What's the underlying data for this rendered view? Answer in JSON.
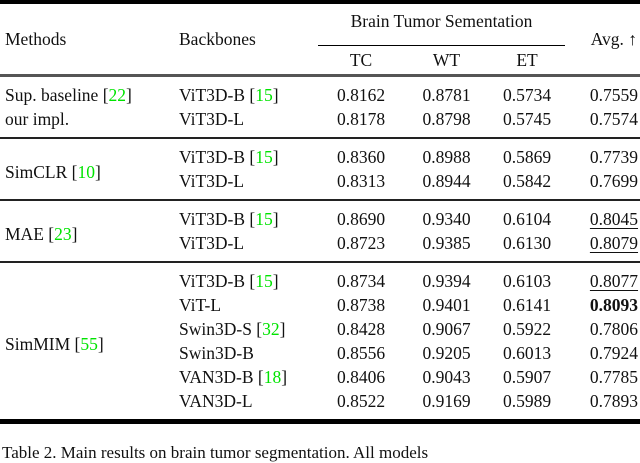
{
  "colors": {
    "citation": "#00e400",
    "rule_heavy": "#000000",
    "rule_header": "#555555"
  },
  "table": {
    "header": {
      "methods": "Methods",
      "backbones": "Backbones",
      "span": "Brain Tumor Sementation",
      "sub": [
        "TC",
        "WT",
        "ET"
      ],
      "avg_label": "Avg. ↑"
    },
    "groups": [
      {
        "method": {
          "lines": [
            {
              "label": "Sup. baseline",
              "cite": "22"
            },
            {
              "label": "our impl.",
              "cite": null
            }
          ]
        },
        "rows": [
          {
            "backbone": {
              "label": "ViT3D-B",
              "cite": "15"
            },
            "tc": "0.8162",
            "wt": "0.8781",
            "et": "0.5734",
            "avg": {
              "v": "0.7559",
              "bold": false,
              "underline": false
            }
          },
          {
            "backbone": {
              "label": "ViT3D-L",
              "cite": null
            },
            "tc": "0.8178",
            "wt": "0.8798",
            "et": "0.5745",
            "avg": {
              "v": "0.7574",
              "bold": false,
              "underline": false
            }
          }
        ]
      },
      {
        "method": {
          "lines": [
            {
              "label": "SimCLR",
              "cite": "10"
            }
          ]
        },
        "rows": [
          {
            "backbone": {
              "label": "ViT3D-B",
              "cite": "15"
            },
            "tc": "0.8360",
            "wt": "0.8988",
            "et": "0.5869",
            "avg": {
              "v": "0.7739",
              "bold": false,
              "underline": false
            }
          },
          {
            "backbone": {
              "label": "ViT3D-L",
              "cite": null
            },
            "tc": "0.8313",
            "wt": "0.8944",
            "et": "0.5842",
            "avg": {
              "v": "0.7699",
              "bold": false,
              "underline": false
            }
          }
        ]
      },
      {
        "method": {
          "lines": [
            {
              "label": "MAE",
              "cite": "23"
            }
          ]
        },
        "rows": [
          {
            "backbone": {
              "label": "ViT3D-B",
              "cite": "15"
            },
            "tc": "0.8690",
            "wt": "0.9340",
            "et": "0.6104",
            "avg": {
              "v": "0.8045",
              "bold": false,
              "underline": true
            }
          },
          {
            "backbone": {
              "label": "ViT3D-L",
              "cite": null
            },
            "tc": "0.8723",
            "wt": "0.9385",
            "et": "0.6130",
            "avg": {
              "v": "0.8079",
              "bold": false,
              "underline": true
            }
          }
        ]
      },
      {
        "method": {
          "lines": [
            {
              "label": "SimMIM",
              "cite": "55"
            }
          ]
        },
        "rows": [
          {
            "backbone": {
              "label": "ViT3D-B",
              "cite": "15"
            },
            "tc": "0.8734",
            "wt": "0.9394",
            "et": "0.6103",
            "avg": {
              "v": "0.8077",
              "bold": false,
              "underline": true
            }
          },
          {
            "backbone": {
              "label": "ViT-L",
              "cite": null
            },
            "tc": "0.8738",
            "wt": "0.9401",
            "et": "0.6141",
            "avg": {
              "v": "0.8093",
              "bold": true,
              "underline": false
            }
          },
          {
            "backbone": {
              "label": "Swin3D-S",
              "cite": "32"
            },
            "tc": "0.8428",
            "wt": "0.9067",
            "et": "0.5922",
            "avg": {
              "v": "0.7806",
              "bold": false,
              "underline": false
            }
          },
          {
            "backbone": {
              "label": "Swin3D-B",
              "cite": null
            },
            "tc": "0.8556",
            "wt": "0.9205",
            "et": "0.6013",
            "avg": {
              "v": "0.7924",
              "bold": false,
              "underline": false
            }
          },
          {
            "backbone": {
              "label": "VAN3D-B",
              "cite": "18"
            },
            "tc": "0.8406",
            "wt": "0.9043",
            "et": "0.5907",
            "avg": {
              "v": "0.7785",
              "bold": false,
              "underline": false
            }
          },
          {
            "backbone": {
              "label": "VAN3D-L",
              "cite": null
            },
            "tc": "0.8522",
            "wt": "0.9169",
            "et": "0.5989",
            "avg": {
              "v": "0.7893",
              "bold": false,
              "underline": false
            }
          }
        ]
      }
    ]
  },
  "caption": "Table 2. Main results on brain tumor segmentation. All models"
}
